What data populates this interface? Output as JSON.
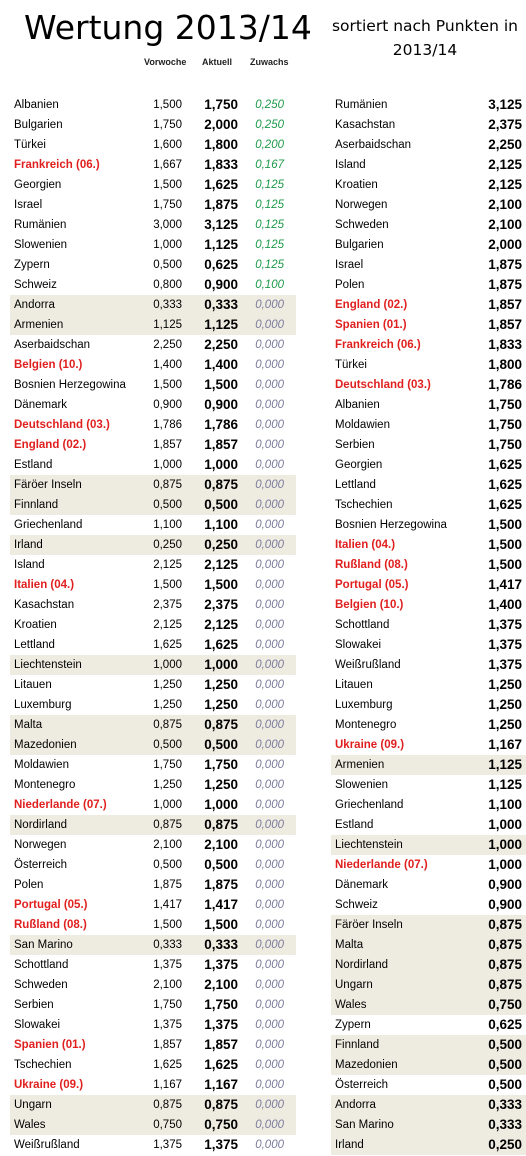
{
  "title": "Wertung 2013/14",
  "subtitle": "sortiert nach Punkten in 2013/14",
  "headers": {
    "vorwoche": "Vorwoche",
    "aktuell": "Aktuell",
    "zuwachs": "Zuwachs"
  },
  "left_rows": [
    {
      "name": "Albanien",
      "vor": "1,500",
      "akt": "1,750",
      "zuw": "0,250",
      "red": false,
      "shaded": false
    },
    {
      "name": "Bulgarien",
      "vor": "1,750",
      "akt": "2,000",
      "zuw": "0,250",
      "red": false,
      "shaded": false
    },
    {
      "name": "Türkei",
      "vor": "1,600",
      "akt": "1,800",
      "zuw": "0,200",
      "red": false,
      "shaded": false
    },
    {
      "name": "Frankreich (06.)",
      "vor": "1,667",
      "akt": "1,833",
      "zuw": "0,167",
      "red": true,
      "shaded": false
    },
    {
      "name": "Georgien",
      "vor": "1,500",
      "akt": "1,625",
      "zuw": "0,125",
      "red": false,
      "shaded": false
    },
    {
      "name": "Israel",
      "vor": "1,750",
      "akt": "1,875",
      "zuw": "0,125",
      "red": false,
      "shaded": false
    },
    {
      "name": "Rumänien",
      "vor": "3,000",
      "akt": "3,125",
      "zuw": "0,125",
      "red": false,
      "shaded": false
    },
    {
      "name": "Slowenien",
      "vor": "1,000",
      "akt": "1,125",
      "zuw": "0,125",
      "red": false,
      "shaded": false
    },
    {
      "name": "Zypern",
      "vor": "0,500",
      "akt": "0,625",
      "zuw": "0,125",
      "red": false,
      "shaded": false
    },
    {
      "name": "Schweiz",
      "vor": "0,800",
      "akt": "0,900",
      "zuw": "0,100",
      "red": false,
      "shaded": false
    },
    {
      "name": "Andorra",
      "vor": "0,333",
      "akt": "0,333",
      "zuw": "0,000",
      "red": false,
      "shaded": true
    },
    {
      "name": "Armenien",
      "vor": "1,125",
      "akt": "1,125",
      "zuw": "0,000",
      "red": false,
      "shaded": true
    },
    {
      "name": "Aserbaidschan",
      "vor": "2,250",
      "akt": "2,250",
      "zuw": "0,000",
      "red": false,
      "shaded": false
    },
    {
      "name": "Belgien (10.)",
      "vor": "1,400",
      "akt": "1,400",
      "zuw": "0,000",
      "red": true,
      "shaded": false
    },
    {
      "name": "Bosnien Herzegowina",
      "vor": "1,500",
      "akt": "1,500",
      "zuw": "0,000",
      "red": false,
      "shaded": false
    },
    {
      "name": "Dänemark",
      "vor": "0,900",
      "akt": "0,900",
      "zuw": "0,000",
      "red": false,
      "shaded": false
    },
    {
      "name": "Deutschland (03.)",
      "vor": "1,786",
      "akt": "1,786",
      "zuw": "0,000",
      "red": true,
      "shaded": false
    },
    {
      "name": "England (02.)",
      "vor": "1,857",
      "akt": "1,857",
      "zuw": "0,000",
      "red": true,
      "shaded": false
    },
    {
      "name": "Estland",
      "vor": "1,000",
      "akt": "1,000",
      "zuw": "0,000",
      "red": false,
      "shaded": false
    },
    {
      "name": "Färöer Inseln",
      "vor": "0,875",
      "akt": "0,875",
      "zuw": "0,000",
      "red": false,
      "shaded": true
    },
    {
      "name": "Finnland",
      "vor": "0,500",
      "akt": "0,500",
      "zuw": "0,000",
      "red": false,
      "shaded": true
    },
    {
      "name": "Griechenland",
      "vor": "1,100",
      "akt": "1,100",
      "zuw": "0,000",
      "red": false,
      "shaded": false
    },
    {
      "name": "Irland",
      "vor": "0,250",
      "akt": "0,250",
      "zuw": "0,000",
      "red": false,
      "shaded": true
    },
    {
      "name": "Island",
      "vor": "2,125",
      "akt": "2,125",
      "zuw": "0,000",
      "red": false,
      "shaded": false
    },
    {
      "name": "Italien (04.)",
      "vor": "1,500",
      "akt": "1,500",
      "zuw": "0,000",
      "red": true,
      "shaded": false
    },
    {
      "name": "Kasachstan",
      "vor": "2,375",
      "akt": "2,375",
      "zuw": "0,000",
      "red": false,
      "shaded": false
    },
    {
      "name": "Kroatien",
      "vor": "2,125",
      "akt": "2,125",
      "zuw": "0,000",
      "red": false,
      "shaded": false
    },
    {
      "name": "Lettland",
      "vor": "1,625",
      "akt": "1,625",
      "zuw": "0,000",
      "red": false,
      "shaded": false
    },
    {
      "name": "Liechtenstein",
      "vor": "1,000",
      "akt": "1,000",
      "zuw": "0,000",
      "red": false,
      "shaded": true
    },
    {
      "name": "Litauen",
      "vor": "1,250",
      "akt": "1,250",
      "zuw": "0,000",
      "red": false,
      "shaded": false
    },
    {
      "name": "Luxemburg",
      "vor": "1,250",
      "akt": "1,250",
      "zuw": "0,000",
      "red": false,
      "shaded": false
    },
    {
      "name": "Malta",
      "vor": "0,875",
      "akt": "0,875",
      "zuw": "0,000",
      "red": false,
      "shaded": true
    },
    {
      "name": "Mazedonien",
      "vor": "0,500",
      "akt": "0,500",
      "zuw": "0,000",
      "red": false,
      "shaded": true
    },
    {
      "name": "Moldawien",
      "vor": "1,750",
      "akt": "1,750",
      "zuw": "0,000",
      "red": false,
      "shaded": false
    },
    {
      "name": "Montenegro",
      "vor": "1,250",
      "akt": "1,250",
      "zuw": "0,000",
      "red": false,
      "shaded": false
    },
    {
      "name": "Niederlande (07.)",
      "vor": "1,000",
      "akt": "1,000",
      "zuw": "0,000",
      "red": true,
      "shaded": false
    },
    {
      "name": "Nordirland",
      "vor": "0,875",
      "akt": "0,875",
      "zuw": "0,000",
      "red": false,
      "shaded": true
    },
    {
      "name": "Norwegen",
      "vor": "2,100",
      "akt": "2,100",
      "zuw": "0,000",
      "red": false,
      "shaded": false
    },
    {
      "name": "Österreich",
      "vor": "0,500",
      "akt": "0,500",
      "zuw": "0,000",
      "red": false,
      "shaded": false
    },
    {
      "name": "Polen",
      "vor": "1,875",
      "akt": "1,875",
      "zuw": "0,000",
      "red": false,
      "shaded": false
    },
    {
      "name": "Portugal (05.)",
      "vor": "1,417",
      "akt": "1,417",
      "zuw": "0,000",
      "red": true,
      "shaded": false
    },
    {
      "name": "Rußland (08.)",
      "vor": "1,500",
      "akt": "1,500",
      "zuw": "0,000",
      "red": true,
      "shaded": false
    },
    {
      "name": "San Marino",
      "vor": "0,333",
      "akt": "0,333",
      "zuw": "0,000",
      "red": false,
      "shaded": true
    },
    {
      "name": "Schottland",
      "vor": "1,375",
      "akt": "1,375",
      "zuw": "0,000",
      "red": false,
      "shaded": false
    },
    {
      "name": "Schweden",
      "vor": "2,100",
      "akt": "2,100",
      "zuw": "0,000",
      "red": false,
      "shaded": false
    },
    {
      "name": "Serbien",
      "vor": "1,750",
      "akt": "1,750",
      "zuw": "0,000",
      "red": false,
      "shaded": false
    },
    {
      "name": "Slowakei",
      "vor": "1,375",
      "akt": "1,375",
      "zuw": "0,000",
      "red": false,
      "shaded": false
    },
    {
      "name": "Spanien (01.)",
      "vor": "1,857",
      "akt": "1,857",
      "zuw": "0,000",
      "red": true,
      "shaded": false
    },
    {
      "name": "Tschechien",
      "vor": "1,625",
      "akt": "1,625",
      "zuw": "0,000",
      "red": false,
      "shaded": false
    },
    {
      "name": "Ukraine (09.)",
      "vor": "1,167",
      "akt": "1,167",
      "zuw": "0,000",
      "red": true,
      "shaded": false
    },
    {
      "name": "Ungarn",
      "vor": "0,875",
      "akt": "0,875",
      "zuw": "0,000",
      "red": false,
      "shaded": true
    },
    {
      "name": "Wales",
      "vor": "0,750",
      "akt": "0,750",
      "zuw": "0,000",
      "red": false,
      "shaded": true
    },
    {
      "name": "Weißrußland",
      "vor": "1,375",
      "akt": "1,375",
      "zuw": "0,000",
      "red": false,
      "shaded": false
    }
  ],
  "right_rows": [
    {
      "name": "Rumänien",
      "pts": "3,125",
      "red": false,
      "shaded": false
    },
    {
      "name": "Kasachstan",
      "pts": "2,375",
      "red": false,
      "shaded": false
    },
    {
      "name": "Aserbaidschan",
      "pts": "2,250",
      "red": false,
      "shaded": false
    },
    {
      "name": "Island",
      "pts": "2,125",
      "red": false,
      "shaded": false
    },
    {
      "name": "Kroatien",
      "pts": "2,125",
      "red": false,
      "shaded": false
    },
    {
      "name": "Norwegen",
      "pts": "2,100",
      "red": false,
      "shaded": false
    },
    {
      "name": "Schweden",
      "pts": "2,100",
      "red": false,
      "shaded": false
    },
    {
      "name": "Bulgarien",
      "pts": "2,000",
      "red": false,
      "shaded": false
    },
    {
      "name": "Israel",
      "pts": "1,875",
      "red": false,
      "shaded": false
    },
    {
      "name": "Polen",
      "pts": "1,875",
      "red": false,
      "shaded": false
    },
    {
      "name": "England (02.)",
      "pts": "1,857",
      "red": true,
      "shaded": false
    },
    {
      "name": "Spanien (01.)",
      "pts": "1,857",
      "red": true,
      "shaded": false
    },
    {
      "name": "Frankreich (06.)",
      "pts": "1,833",
      "red": true,
      "shaded": false
    },
    {
      "name": "Türkei",
      "pts": "1,800",
      "red": false,
      "shaded": false
    },
    {
      "name": "Deutschland (03.)",
      "pts": "1,786",
      "red": true,
      "shaded": false
    },
    {
      "name": "Albanien",
      "pts": "1,750",
      "red": false,
      "shaded": false
    },
    {
      "name": "Moldawien",
      "pts": "1,750",
      "red": false,
      "shaded": false
    },
    {
      "name": "Serbien",
      "pts": "1,750",
      "red": false,
      "shaded": false
    },
    {
      "name": "Georgien",
      "pts": "1,625",
      "red": false,
      "shaded": false
    },
    {
      "name": "Lettland",
      "pts": "1,625",
      "red": false,
      "shaded": false
    },
    {
      "name": "Tschechien",
      "pts": "1,625",
      "red": false,
      "shaded": false
    },
    {
      "name": "Bosnien Herzegowina",
      "pts": "1,500",
      "red": false,
      "shaded": false
    },
    {
      "name": "Italien (04.)",
      "pts": "1,500",
      "red": true,
      "shaded": false
    },
    {
      "name": "Rußland (08.)",
      "pts": "1,500",
      "red": true,
      "shaded": false
    },
    {
      "name": "Portugal (05.)",
      "pts": "1,417",
      "red": true,
      "shaded": false
    },
    {
      "name": "Belgien (10.)",
      "pts": "1,400",
      "red": true,
      "shaded": false
    },
    {
      "name": "Schottland",
      "pts": "1,375",
      "red": false,
      "shaded": false
    },
    {
      "name": "Slowakei",
      "pts": "1,375",
      "red": false,
      "shaded": false
    },
    {
      "name": "Weißrußland",
      "pts": "1,375",
      "red": false,
      "shaded": false
    },
    {
      "name": "Litauen",
      "pts": "1,250",
      "red": false,
      "shaded": false
    },
    {
      "name": "Luxemburg",
      "pts": "1,250",
      "red": false,
      "shaded": false
    },
    {
      "name": "Montenegro",
      "pts": "1,250",
      "red": false,
      "shaded": false
    },
    {
      "name": "Ukraine (09.)",
      "pts": "1,167",
      "red": true,
      "shaded": false
    },
    {
      "name": "Armenien",
      "pts": "1,125",
      "red": false,
      "shaded": true
    },
    {
      "name": "Slowenien",
      "pts": "1,125",
      "red": false,
      "shaded": false
    },
    {
      "name": "Griechenland",
      "pts": "1,100",
      "red": false,
      "shaded": false
    },
    {
      "name": "Estland",
      "pts": "1,000",
      "red": false,
      "shaded": false
    },
    {
      "name": "Liechtenstein",
      "pts": "1,000",
      "red": false,
      "shaded": true
    },
    {
      "name": "Niederlande (07.)",
      "pts": "1,000",
      "red": true,
      "shaded": false
    },
    {
      "name": "Dänemark",
      "pts": "0,900",
      "red": false,
      "shaded": false
    },
    {
      "name": "Schweiz",
      "pts": "0,900",
      "red": false,
      "shaded": false
    },
    {
      "name": "Färöer Inseln",
      "pts": "0,875",
      "red": false,
      "shaded": true
    },
    {
      "name": "Malta",
      "pts": "0,875",
      "red": false,
      "shaded": true
    },
    {
      "name": "Nordirland",
      "pts": "0,875",
      "red": false,
      "shaded": true
    },
    {
      "name": "Ungarn",
      "pts": "0,875",
      "red": false,
      "shaded": true
    },
    {
      "name": "Wales",
      "pts": "0,750",
      "red": false,
      "shaded": true
    },
    {
      "name": "Zypern",
      "pts": "0,625",
      "red": false,
      "shaded": false
    },
    {
      "name": "Finnland",
      "pts": "0,500",
      "red": false,
      "shaded": true
    },
    {
      "name": "Mazedonien",
      "pts": "0,500",
      "red": false,
      "shaded": true
    },
    {
      "name": "Österreich",
      "pts": "0,500",
      "red": false,
      "shaded": false
    },
    {
      "name": "Andorra",
      "pts": "0,333",
      "red": false,
      "shaded": true
    },
    {
      "name": "San Marino",
      "pts": "0,333",
      "red": false,
      "shaded": true
    },
    {
      "name": "Irland",
      "pts": "0,250",
      "red": false,
      "shaded": true
    }
  ]
}
